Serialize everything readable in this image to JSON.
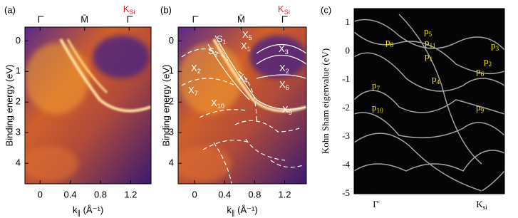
{
  "chart_data": [
    {
      "type": "image",
      "panel": "(a)",
      "xlabel": {
        "base": "k",
        "sub": "∥",
        "tail": " (Å⁻¹)"
      },
      "ylabel": "Binding energy (eV)",
      "xlim": [
        -0.2,
        1.47
      ],
      "ylim": [
        4.67,
        -0.45
      ],
      "xticks": [
        0,
        0.4,
        0.8,
        1.2
      ],
      "yticks": [
        0,
        1,
        2,
        3,
        4
      ],
      "top_ticks": [
        {
          "value": 0,
          "label": "Γ̄"
        },
        {
          "value": 0.59,
          "label": "M̄"
        },
        {
          "value": 1.18,
          "label": "Γ̄"
        }
      ],
      "top_note": {
        "base": "K",
        "sub": "Si"
      },
      "note_color": "#e8202a"
    },
    {
      "type": "image",
      "panel": "(b)",
      "xlabel": {
        "base": "k",
        "sub": "∥",
        "tail": " (Å⁻¹)"
      },
      "ylabel": "Binding energy (eV)",
      "xlim": [
        -0.22,
        1.49
      ],
      "ylim": [
        4.67,
        -0.45
      ],
      "xticks": [
        0,
        0.4,
        0.8,
        1.2
      ],
      "yticks": [
        0,
        1,
        2,
        3,
        4
      ],
      "top_ticks": [
        {
          "value": 0,
          "label": "Γ̄"
        },
        {
          "value": 0.62,
          "label": "M̄"
        },
        {
          "value": 1.19,
          "label": "Γ̄"
        }
      ],
      "top_note": {
        "base": "K",
        "sub": "Si"
      },
      "note_color": "#e8202a",
      "annotation_color": "#ffffff",
      "annotations": [
        {
          "base": "S",
          "sub": "1"
        },
        {
          "base": "X",
          "sub": "5"
        },
        {
          "base": "X",
          "sub": "1"
        },
        {
          "base": "S",
          "sub": "2"
        },
        {
          "base": "X",
          "sub": "3"
        },
        {
          "base": "X",
          "sub": "2"
        },
        {
          "base": "X",
          "sub": "2"
        },
        {
          "base": "X",
          "sub": "6"
        },
        {
          "base": "X",
          "sub": "7"
        },
        {
          "base": "X",
          "sub": "4"
        },
        {
          "base": "X",
          "sub": "10"
        },
        {
          "base": "X",
          "sub": "9"
        }
      ]
    },
    {
      "type": "image",
      "panel": "(c)",
      "ylabel": "Kohn Sham eigenvalue (eV)",
      "ylim": [
        -5,
        1.5
      ],
      "yticks": [
        1,
        0,
        -1,
        -2,
        -3,
        -4,
        -5
      ],
      "categories": [
        {
          "base": "Γ̄"
        },
        {
          "base": "K",
          "sub": "si"
        }
      ],
      "annotation_color": "#f2e600",
      "annotations": [
        {
          "base": "p",
          "sub": "8"
        },
        {
          "base": "p",
          "sub": "5"
        },
        {
          "base": "p",
          "sub": "11"
        },
        {
          "base": "p",
          "sub": "1"
        },
        {
          "base": "p",
          "sub": "3"
        },
        {
          "base": "p",
          "sub": "2"
        },
        {
          "base": "p",
          "sub": "6"
        },
        {
          "base": "p",
          "sub": "4"
        },
        {
          "base": "p",
          "sub": "7"
        },
        {
          "base": "p",
          "sub": "10"
        },
        {
          "base": "p",
          "sub": "9"
        }
      ]
    }
  ]
}
